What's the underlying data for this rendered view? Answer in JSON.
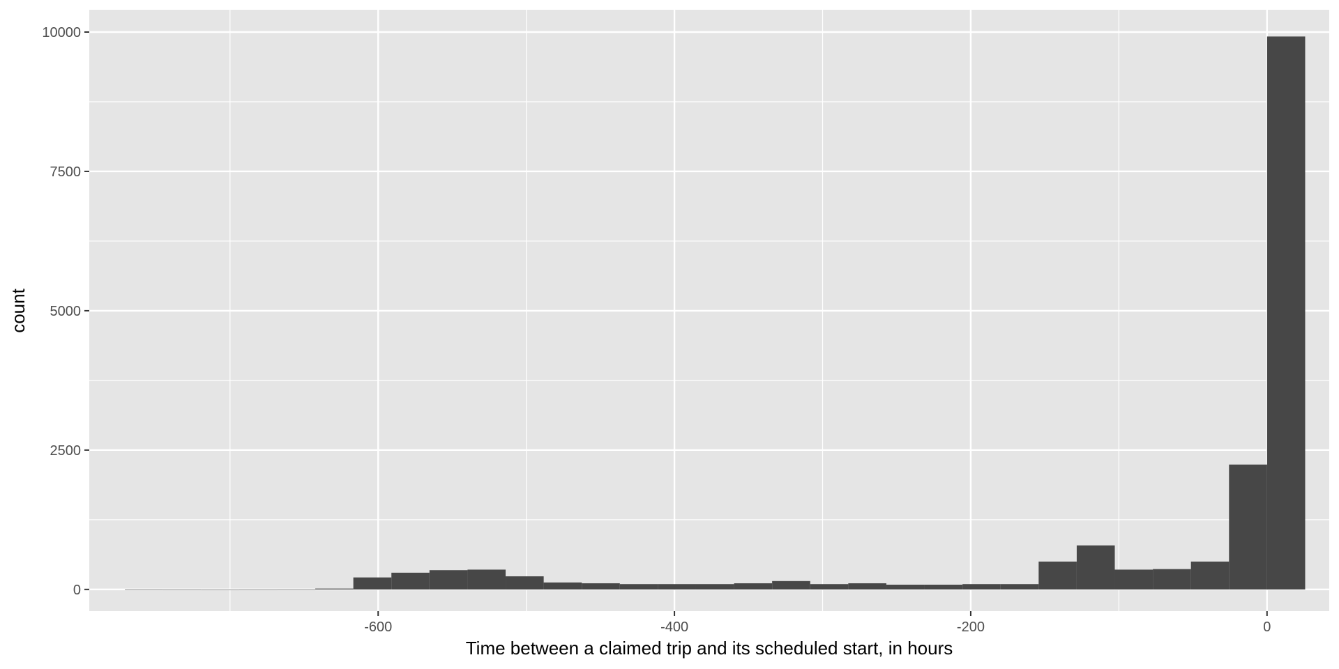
{
  "chart_data": {
    "type": "bar",
    "title": "",
    "xlabel": "Time between a claimed trip and its scheduled start, in hours",
    "ylabel": "count",
    "xlim": [
      -795,
      42
    ],
    "ylim": [
      -390,
      10400
    ],
    "x_ticks": [
      -600,
      -400,
      -200,
      0
    ],
    "x_tick_labels": [
      "-600",
      "-400",
      "-200",
      "0"
    ],
    "x_minor_grid": [
      -700,
      -500,
      -300,
      -100
    ],
    "y_ticks": [
      0,
      2500,
      5000,
      7500,
      10000
    ],
    "y_tick_labels": [
      "0",
      "2500",
      "5000",
      "7500",
      "10000"
    ],
    "y_minor_grid": [
      1250,
      3750,
      6250,
      8750
    ],
    "bin_width": 25.7,
    "bins": [
      {
        "x": -758.1,
        "count": 2
      },
      {
        "x": -732.4,
        "count": 1
      },
      {
        "x": -706.7,
        "count": 0
      },
      {
        "x": -681.0,
        "count": 1
      },
      {
        "x": -655.3,
        "count": 2
      },
      {
        "x": -629.6,
        "count": 15
      },
      {
        "x": -603.9,
        "count": 215
      },
      {
        "x": -578.2,
        "count": 300
      },
      {
        "x": -552.5,
        "count": 345
      },
      {
        "x": -526.8,
        "count": 355
      },
      {
        "x": -501.1,
        "count": 235
      },
      {
        "x": -475.4,
        "count": 125
      },
      {
        "x": -449.7,
        "count": 110
      },
      {
        "x": -424.0,
        "count": 95
      },
      {
        "x": -398.3,
        "count": 95
      },
      {
        "x": -372.6,
        "count": 95
      },
      {
        "x": -346.9,
        "count": 110
      },
      {
        "x": -321.2,
        "count": 150
      },
      {
        "x": -295.5,
        "count": 95
      },
      {
        "x": -269.8,
        "count": 110
      },
      {
        "x": -244.1,
        "count": 85
      },
      {
        "x": -218.4,
        "count": 85
      },
      {
        "x": -192.7,
        "count": 95
      },
      {
        "x": -167.0,
        "count": 95
      },
      {
        "x": -141.3,
        "count": 500
      },
      {
        "x": -115.6,
        "count": 790
      },
      {
        "x": -89.9,
        "count": 355
      },
      {
        "x": -64.2,
        "count": 365
      },
      {
        "x": -38.5,
        "count": 500
      },
      {
        "x": -12.8,
        "count": 2240
      },
      {
        "x": 12.9,
        "count": 9920
      }
    ],
    "colors": {
      "panel": "#e5e5e5",
      "grid": "#ffffff",
      "bar": "#474747",
      "tick_text": "#4d4d4d",
      "axis_title": "#000000"
    },
    "grid": true,
    "legend": "none"
  }
}
